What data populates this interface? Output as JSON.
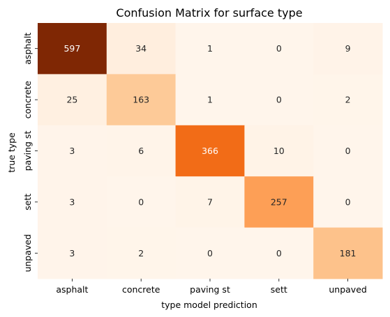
{
  "chart_data": {
    "type": "heatmap",
    "title": "Confusion Matrix for surface type",
    "xlabel": "type model prediction",
    "ylabel": "true type",
    "x_categories": [
      "asphalt",
      "concrete",
      "paving st",
      "sett",
      "unpaved"
    ],
    "y_categories": [
      "asphalt",
      "concrete",
      "paving st",
      "sett",
      "unpaved"
    ],
    "values": [
      [
        597,
        34,
        1,
        0,
        9
      ],
      [
        25,
        163,
        1,
        0,
        2
      ],
      [
        3,
        6,
        366,
        10,
        0
      ],
      [
        3,
        0,
        7,
        257,
        0
      ],
      [
        3,
        2,
        0,
        0,
        181
      ]
    ],
    "colormap": "Oranges",
    "vmin": 0,
    "vmax": 597,
    "colorbar": false
  }
}
